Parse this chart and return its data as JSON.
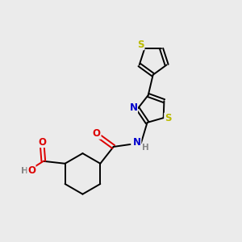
{
  "bg_color": "#ebebeb",
  "atom_colors": {
    "C": "#000000",
    "N": "#0000cc",
    "O": "#dd0000",
    "S": "#bbbb00",
    "H": "#888888"
  },
  "figsize": [
    3.0,
    3.0
  ],
  "dpi": 100
}
